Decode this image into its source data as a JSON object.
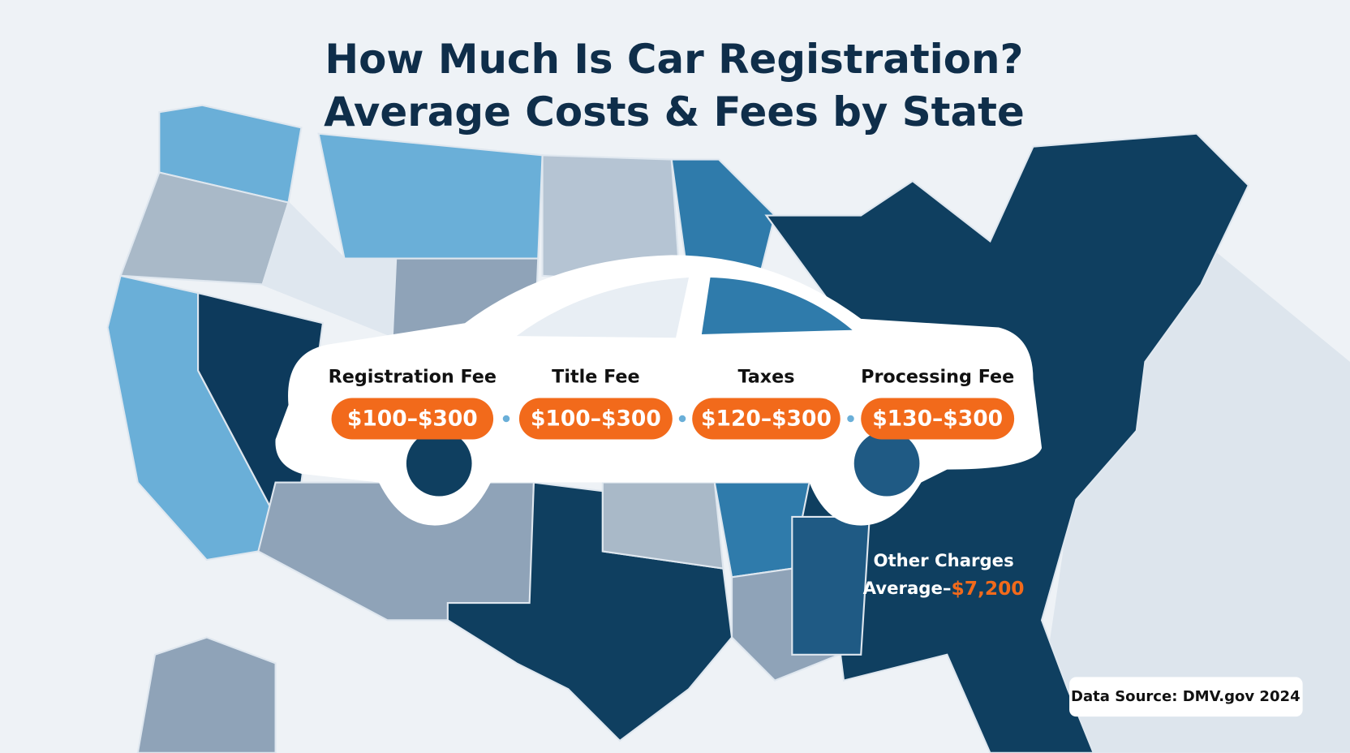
{
  "header": {
    "title_line1": "How Much Is Car Registration?",
    "title_line2": "Average Costs & Fees by State"
  },
  "fees": [
    {
      "label": "Registration Fee",
      "range": "$100–$300"
    },
    {
      "label": "Title Fee",
      "range": "$100–$300"
    },
    {
      "label": "Taxes",
      "range": "$120–$300"
    },
    {
      "label": "Processing Fee",
      "range": "$130–$300"
    }
  ],
  "other_charges": {
    "label": "Other Charges",
    "prefix": "Average–",
    "amount": "$7,200"
  },
  "source": "Data Source: DMV.gov 2024"
}
